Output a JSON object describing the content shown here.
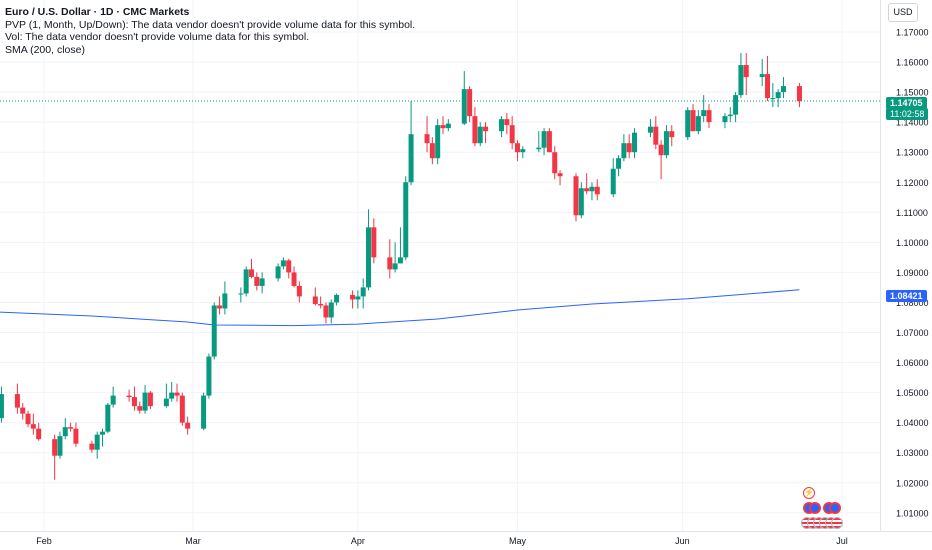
{
  "legend": {
    "title": "Euro / U.S. Dollar · 1D · CMC Markets",
    "pvp": "PVP (1, Month, Up/Down): The data vendor doesn't provide volume data for this symbol.",
    "vol": "Vol: The data vendor doesn't provide volume data for this symbol.",
    "sma": "SMA (200, close)"
  },
  "currency_label": "USD",
  "last_price_label": "1.14705",
  "countdown_label": "11:02:58",
  "sma_label": "1.08421",
  "colors": {
    "up": "#089981",
    "down": "#f23645",
    "sma": "#2962ff",
    "grid": "#f0f3fa",
    "axis_text": "#131722"
  },
  "chart_data": {
    "type": "candlestick",
    "y_axis": {
      "min": 1.005,
      "max": 1.175,
      "position": "right",
      "ticks": [
        "1.01000",
        "1.02000",
        "1.03000",
        "1.04000",
        "1.05000",
        "1.06000",
        "1.07000",
        "1.08000",
        "1.09000",
        "1.10000",
        "1.11000",
        "1.12000",
        "1.13000",
        "1.14000",
        "1.15000",
        "1.16000",
        "1.17000"
      ]
    },
    "x_axis": {
      "labels": [
        "Feb",
        "Mar",
        "Apr",
        "May",
        "Jun",
        "Jul"
      ],
      "label_dates": [
        "2025-02-01",
        "2025-03-01",
        "2025-04-01",
        "2025-05-01",
        "2025-06-01",
        "2025-07-01"
      ],
      "range": [
        "2025-01-21",
        "2025-07-10"
      ]
    },
    "last_price": 1.14705,
    "grid": true,
    "candles": [
      {
        "t": "2025-01-21",
        "o": 1.043,
        "h": 1.0535,
        "l": 1.039,
        "c": 1.0505
      },
      {
        "t": "2025-01-22",
        "o": 1.0505,
        "h": 1.052,
        "l": 1.039,
        "c": 1.041
      },
      {
        "t": "2025-01-23",
        "o": 1.041,
        "h": 1.046,
        "l": 1.039,
        "c": 1.0415
      },
      {
        "t": "2025-01-24",
        "o": 1.0415,
        "h": 1.052,
        "l": 1.04,
        "c": 1.0495
      },
      {
        "t": "2025-01-27",
        "o": 1.0495,
        "h": 1.053,
        "l": 1.043,
        "c": 1.045
      },
      {
        "t": "2025-01-28",
        "o": 1.045,
        "h": 1.0465,
        "l": 1.041,
        "c": 1.043
      },
      {
        "t": "2025-01-29",
        "o": 1.043,
        "h": 1.044,
        "l": 1.0385,
        "c": 1.0395
      },
      {
        "t": "2025-01-30",
        "o": 1.0395,
        "h": 1.043,
        "l": 1.036,
        "c": 1.038
      },
      {
        "t": "2025-01-31",
        "o": 1.038,
        "h": 1.04,
        "l": 1.034,
        "c": 1.0345
      },
      {
        "t": "2025-02-03",
        "o": 1.0345,
        "h": 1.036,
        "l": 1.021,
        "c": 1.029
      },
      {
        "t": "2025-02-04",
        "o": 1.029,
        "h": 1.037,
        "l": 1.028,
        "c": 1.0355
      },
      {
        "t": "2025-02-05",
        "o": 1.0355,
        "h": 1.0415,
        "l": 1.0345,
        "c": 1.0385
      },
      {
        "t": "2025-02-06",
        "o": 1.0385,
        "h": 1.04,
        "l": 1.037,
        "c": 1.038
      },
      {
        "t": "2025-02-07",
        "o": 1.038,
        "h": 1.04,
        "l": 1.032,
        "c": 1.033
      },
      {
        "t": "2025-02-10",
        "o": 1.033,
        "h": 1.034,
        "l": 1.03,
        "c": 1.031
      },
      {
        "t": "2025-02-11",
        "o": 1.031,
        "h": 1.037,
        "l": 1.028,
        "c": 1.036
      },
      {
        "t": "2025-02-12",
        "o": 1.036,
        "h": 1.038,
        "l": 1.032,
        "c": 1.037
      },
      {
        "t": "2025-02-13",
        "o": 1.037,
        "h": 1.0465,
        "l": 1.0365,
        "c": 1.046
      },
      {
        "t": "2025-02-14",
        "o": 1.046,
        "h": 1.052,
        "l": 1.045,
        "c": 1.049
      },
      {
        "t": "2025-02-17",
        "o": 1.049,
        "h": 1.051,
        "l": 1.047,
        "c": 1.0485
      },
      {
        "t": "2025-02-18",
        "o": 1.0485,
        "h": 1.052,
        "l": 1.044,
        "c": 1.0455
      },
      {
        "t": "2025-02-19",
        "o": 1.0455,
        "h": 1.047,
        "l": 1.043,
        "c": 1.044
      },
      {
        "t": "2025-02-20",
        "o": 1.044,
        "h": 1.0525,
        "l": 1.043,
        "c": 1.05
      },
      {
        "t": "2025-02-21",
        "o": 1.05,
        "h": 1.0505,
        "l": 1.0445,
        "c": 1.0455
      },
      {
        "t": "2025-02-24",
        "o": 1.0455,
        "h": 1.053,
        "l": 1.045,
        "c": 1.048
      },
      {
        "t": "2025-02-25",
        "o": 1.048,
        "h": 1.0535,
        "l": 1.047,
        "c": 1.05
      },
      {
        "t": "2025-02-26",
        "o": 1.05,
        "h": 1.053,
        "l": 1.047,
        "c": 1.049
      },
      {
        "t": "2025-02-27",
        "o": 1.049,
        "h": 1.05,
        "l": 1.039,
        "c": 1.04
      },
      {
        "t": "2025-02-28",
        "o": 1.04,
        "h": 1.042,
        "l": 1.036,
        "c": 1.038
      },
      {
        "t": "2025-03-03",
        "o": 1.038,
        "h": 1.05,
        "l": 1.0375,
        "c": 1.049
      },
      {
        "t": "2025-03-04",
        "o": 1.049,
        "h": 1.063,
        "l": 1.048,
        "c": 1.062
      },
      {
        "t": "2025-03-05",
        "o": 1.062,
        "h": 1.08,
        "l": 1.061,
        "c": 1.079
      },
      {
        "t": "2025-03-06",
        "o": 1.079,
        "h": 1.082,
        "l": 1.076,
        "c": 1.078
      },
      {
        "t": "2025-03-07",
        "o": 1.078,
        "h": 1.087,
        "l": 1.076,
        "c": 1.083
      },
      {
        "t": "2025-03-10",
        "o": 1.083,
        "h": 1.085,
        "l": 1.08,
        "c": 1.083
      },
      {
        "t": "2025-03-11",
        "o": 1.083,
        "h": 1.092,
        "l": 1.082,
        "c": 1.091
      },
      {
        "t": "2025-03-12",
        "o": 1.091,
        "h": 1.0945,
        "l": 1.088,
        "c": 1.0885
      },
      {
        "t": "2025-03-13",
        "o": 1.0885,
        "h": 1.09,
        "l": 1.084,
        "c": 1.0855
      },
      {
        "t": "2025-03-14",
        "o": 1.0855,
        "h": 1.09,
        "l": 1.083,
        "c": 1.088
      },
      {
        "t": "2025-03-17",
        "o": 1.088,
        "h": 1.093,
        "l": 1.087,
        "c": 1.092
      },
      {
        "t": "2025-03-18",
        "o": 1.092,
        "h": 1.095,
        "l": 1.091,
        "c": 1.094
      },
      {
        "t": "2025-03-19",
        "o": 1.094,
        "h": 1.0945,
        "l": 1.088,
        "c": 1.09
      },
      {
        "t": "2025-03-20",
        "o": 1.09,
        "h": 1.092,
        "l": 1.085,
        "c": 1.0855
      },
      {
        "t": "2025-03-21",
        "o": 1.0855,
        "h": 1.087,
        "l": 1.08,
        "c": 1.082
      },
      {
        "t": "2025-03-24",
        "o": 1.082,
        "h": 1.085,
        "l": 1.079,
        "c": 1.0795
      },
      {
        "t": "2025-03-25",
        "o": 1.0795,
        "h": 1.082,
        "l": 1.078,
        "c": 1.079
      },
      {
        "t": "2025-03-26",
        "o": 1.079,
        "h": 1.08,
        "l": 1.073,
        "c": 1.075
      },
      {
        "t": "2025-03-27",
        "o": 1.075,
        "h": 1.081,
        "l": 1.073,
        "c": 1.08
      },
      {
        "t": "2025-03-28",
        "o": 1.08,
        "h": 1.083,
        "l": 1.079,
        "c": 1.0825
      },
      {
        "t": "2025-03-31",
        "o": 1.0825,
        "h": 1.084,
        "l": 1.078,
        "c": 1.081
      },
      {
        "t": "2025-04-01",
        "o": 1.081,
        "h": 1.084,
        "l": 1.078,
        "c": 1.082
      },
      {
        "t": "2025-04-02",
        "o": 1.082,
        "h": 1.088,
        "l": 1.078,
        "c": 1.085
      },
      {
        "t": "2025-04-03",
        "o": 1.085,
        "h": 1.111,
        "l": 1.084,
        "c": 1.105
      },
      {
        "t": "2025-04-04",
        "o": 1.105,
        "h": 1.108,
        "l": 1.093,
        "c": 1.095
      },
      {
        "t": "2025-04-07",
        "o": 1.095,
        "h": 1.101,
        "l": 1.088,
        "c": 1.091
      },
      {
        "t": "2025-04-08",
        "o": 1.091,
        "h": 1.1,
        "l": 1.09,
        "c": 1.093
      },
      {
        "t": "2025-04-09",
        "o": 1.093,
        "h": 1.105,
        "l": 1.093,
        "c": 1.095
      },
      {
        "t": "2025-04-10",
        "o": 1.095,
        "h": 1.122,
        "l": 1.094,
        "c": 1.12
      },
      {
        "t": "2025-04-11",
        "o": 1.12,
        "h": 1.147,
        "l": 1.119,
        "c": 1.136
      },
      {
        "t": "2025-04-14",
        "o": 1.136,
        "h": 1.142,
        "l": 1.13,
        "c": 1.133
      },
      {
        "t": "2025-04-15",
        "o": 1.133,
        "h": 1.135,
        "l": 1.126,
        "c": 1.128
      },
      {
        "t": "2025-04-16",
        "o": 1.128,
        "h": 1.141,
        "l": 1.126,
        "c": 1.139
      },
      {
        "t": "2025-04-17",
        "o": 1.139,
        "h": 1.142,
        "l": 1.136,
        "c": 1.138
      },
      {
        "t": "2025-04-18",
        "o": 1.138,
        "h": 1.141,
        "l": 1.137,
        "c": 1.1395
      },
      {
        "t": "2025-04-21",
        "o": 1.1395,
        "h": 1.157,
        "l": 1.139,
        "c": 1.151
      },
      {
        "t": "2025-04-22",
        "o": 1.151,
        "h": 1.152,
        "l": 1.14,
        "c": 1.142
      },
      {
        "t": "2025-04-23",
        "o": 1.142,
        "h": 1.145,
        "l": 1.132,
        "c": 1.133
      },
      {
        "t": "2025-04-24",
        "o": 1.133,
        "h": 1.14,
        "l": 1.132,
        "c": 1.1385
      },
      {
        "t": "2025-04-25",
        "o": 1.1385,
        "h": 1.14,
        "l": 1.133,
        "c": 1.137
      },
      {
        "t": "2025-04-28",
        "o": 1.137,
        "h": 1.142,
        "l": 1.135,
        "c": 1.141
      },
      {
        "t": "2025-04-29",
        "o": 1.141,
        "h": 1.143,
        "l": 1.136,
        "c": 1.139
      },
      {
        "t": "2025-04-30",
        "o": 1.139,
        "h": 1.142,
        "l": 1.131,
        "c": 1.133
      },
      {
        "t": "2025-05-01",
        "o": 1.133,
        "h": 1.134,
        "l": 1.127,
        "c": 1.13
      },
      {
        "t": "2025-05-02",
        "o": 1.13,
        "h": 1.132,
        "l": 1.128,
        "c": 1.131
      },
      {
        "t": "2025-05-05",
        "o": 1.131,
        "h": 1.137,
        "l": 1.13,
        "c": 1.1315
      },
      {
        "t": "2025-05-06",
        "o": 1.1315,
        "h": 1.138,
        "l": 1.129,
        "c": 1.137
      },
      {
        "t": "2025-05-07",
        "o": 1.137,
        "h": 1.138,
        "l": 1.13,
        "c": 1.13
      },
      {
        "t": "2025-05-08",
        "o": 1.13,
        "h": 1.132,
        "l": 1.121,
        "c": 1.123
      },
      {
        "t": "2025-05-09",
        "o": 1.123,
        "h": 1.124,
        "l": 1.119,
        "c": 1.122
      },
      {
        "t": "2025-05-12",
        "o": 1.122,
        "h": 1.123,
        "l": 1.107,
        "c": 1.109
      },
      {
        "t": "2025-05-13",
        "o": 1.109,
        "h": 1.12,
        "l": 1.108,
        "c": 1.118
      },
      {
        "t": "2025-05-14",
        "o": 1.118,
        "h": 1.123,
        "l": 1.116,
        "c": 1.117
      },
      {
        "t": "2025-05-15",
        "o": 1.117,
        "h": 1.12,
        "l": 1.114,
        "c": 1.1185
      },
      {
        "t": "2025-05-16",
        "o": 1.1185,
        "h": 1.121,
        "l": 1.114,
        "c": 1.116
      },
      {
        "t": "2025-05-19",
        "o": 1.116,
        "h": 1.128,
        "l": 1.115,
        "c": 1.1245
      },
      {
        "t": "2025-05-20",
        "o": 1.1245,
        "h": 1.129,
        "l": 1.122,
        "c": 1.128
      },
      {
        "t": "2025-05-21",
        "o": 1.128,
        "h": 1.136,
        "l": 1.127,
        "c": 1.133
      },
      {
        "t": "2025-05-22",
        "o": 1.133,
        "h": 1.136,
        "l": 1.128,
        "c": 1.13
      },
      {
        "t": "2025-05-23",
        "o": 1.13,
        "h": 1.138,
        "l": 1.128,
        "c": 1.1365
      },
      {
        "t": "2025-05-26",
        "o": 1.1365,
        "h": 1.141,
        "l": 1.135,
        "c": 1.1385
      },
      {
        "t": "2025-05-27",
        "o": 1.1385,
        "h": 1.142,
        "l": 1.131,
        "c": 1.1325
      },
      {
        "t": "2025-05-28",
        "o": 1.1325,
        "h": 1.134,
        "l": 1.121,
        "c": 1.129
      },
      {
        "t": "2025-05-29",
        "o": 1.129,
        "h": 1.139,
        "l": 1.128,
        "c": 1.137
      },
      {
        "t": "2025-05-30",
        "o": 1.137,
        "h": 1.139,
        "l": 1.132,
        "c": 1.135
      },
      {
        "t": "2025-06-02",
        "o": 1.135,
        "h": 1.145,
        "l": 1.134,
        "c": 1.144
      },
      {
        "t": "2025-06-03",
        "o": 1.144,
        "h": 1.146,
        "l": 1.137,
        "c": 1.137
      },
      {
        "t": "2025-06-04",
        "o": 1.137,
        "h": 1.144,
        "l": 1.136,
        "c": 1.142
      },
      {
        "t": "2025-06-05",
        "o": 1.142,
        "h": 1.149,
        "l": 1.14,
        "c": 1.144
      },
      {
        "t": "2025-06-06",
        "o": 1.144,
        "h": 1.146,
        "l": 1.138,
        "c": 1.14
      },
      {
        "t": "2025-06-09",
        "o": 1.14,
        "h": 1.143,
        "l": 1.138,
        "c": 1.142
      },
      {
        "t": "2025-06-10",
        "o": 1.142,
        "h": 1.145,
        "l": 1.14,
        "c": 1.1425
      },
      {
        "t": "2025-06-11",
        "o": 1.1425,
        "h": 1.15,
        "l": 1.14,
        "c": 1.149
      },
      {
        "t": "2025-06-12",
        "o": 1.149,
        "h": 1.163,
        "l": 1.148,
        "c": 1.159
      },
      {
        "t": "2025-06-13",
        "o": 1.159,
        "h": 1.163,
        "l": 1.149,
        "c": 1.155
      },
      {
        "t": "2025-06-16",
        "o": 1.155,
        "h": 1.161,
        "l": 1.152,
        "c": 1.156
      },
      {
        "t": "2025-06-17",
        "o": 1.156,
        "h": 1.162,
        "l": 1.147,
        "c": 1.148
      },
      {
        "t": "2025-06-18",
        "o": 1.148,
        "h": 1.153,
        "l": 1.145,
        "c": 1.148
      },
      {
        "t": "2025-06-19",
        "o": 1.148,
        "h": 1.151,
        "l": 1.145,
        "c": 1.15
      },
      {
        "t": "2025-06-20",
        "o": 1.15,
        "h": 1.155,
        "l": 1.148,
        "c": 1.152
      },
      {
        "t": "2025-06-23",
        "o": 1.152,
        "h": 1.153,
        "l": 1.145,
        "c": 1.147
      }
    ],
    "sma": {
      "name": "SMA (200, close)",
      "points": [
        {
          "t": "2025-01-21",
          "v": 1.077
        },
        {
          "t": "2025-02-10",
          "v": 1.0755
        },
        {
          "t": "2025-02-28",
          "v": 1.0735
        },
        {
          "t": "2025-03-05",
          "v": 1.0725
        },
        {
          "t": "2025-03-20",
          "v": 1.0723
        },
        {
          "t": "2025-04-01",
          "v": 1.0728
        },
        {
          "t": "2025-04-16",
          "v": 1.0745
        },
        {
          "t": "2025-05-01",
          "v": 1.0775
        },
        {
          "t": "2025-05-15",
          "v": 1.0795
        },
        {
          "t": "2025-06-02",
          "v": 1.0812
        },
        {
          "t": "2025-06-23",
          "v": 1.0842
        }
      ]
    }
  }
}
